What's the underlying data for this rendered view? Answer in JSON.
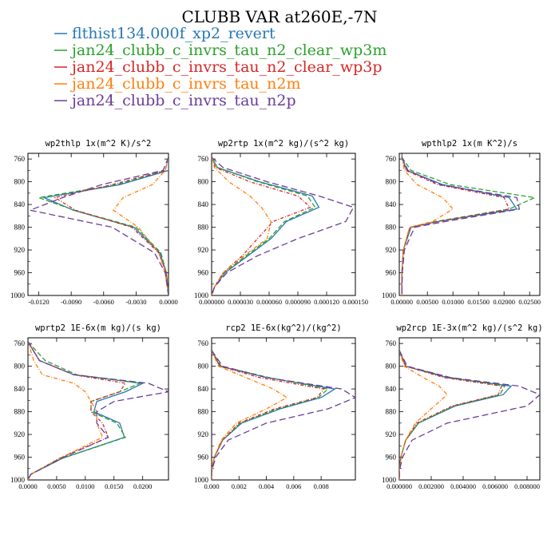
{
  "figure": {
    "title": "CLUBB VAR at260E,-7N"
  },
  "legend": [
    {
      "label": "flthist134.000f_xp2_revert",
      "color": "#2778b5"
    },
    {
      "label": "jan24_clubb_c_invrs_tau_n2_clear_wp3m",
      "color": "#2ca02c"
    },
    {
      "label": "jan24_clubb_c_invrs_tau_n2_clear_wp3p",
      "color": "#d62728"
    },
    {
      "label": "jan24_clubb_c_invrs_tau_n2m",
      "color": "#ff7f0e"
    },
    {
      "label": "jan24_clubb_c_invrs_tau_n2p",
      "color": "#6a3d9a"
    }
  ],
  "chart_data": [
    {
      "type": "line",
      "title": "wp2thlp  1x(m^2 K)/s^2",
      "xlim": [
        -0.013,
        0.0
      ],
      "ylim": [
        1000,
        750
      ],
      "xticks": [
        -0.012,
        -0.009,
        -0.006,
        -0.003,
        0.0
      ],
      "xtick_labels": [
        "-0.0120",
        "-0.0090",
        "-0.0060",
        "-0.0030",
        "0.0000"
      ],
      "yticks": [
        760,
        800,
        840,
        880,
        920,
        960,
        1000
      ],
      "y": [
        757,
        780,
        805,
        828,
        850,
        880,
        925,
        960,
        1000
      ],
      "series": [
        {
          "values": [
            0.0,
            0.0,
            -0.0045,
            -0.0115,
            -0.0088,
            -0.0032,
            -0.0008,
            -0.0002,
            0.0
          ]
        },
        {
          "values": [
            0.0,
            -0.0003,
            -0.0048,
            -0.012,
            -0.0087,
            -0.003,
            -0.0007,
            -0.0002,
            0.0
          ]
        },
        {
          "values": [
            0.0,
            -0.0003,
            -0.0052,
            -0.0105,
            -0.0086,
            -0.0034,
            -0.0009,
            -0.0002,
            0.0
          ]
        },
        {
          "values": [
            0.0,
            -0.0003,
            -0.0015,
            -0.0042,
            -0.0051,
            -0.0028,
            -0.0009,
            -0.0003,
            0.0
          ]
        },
        {
          "values": [
            0.0,
            -0.0005,
            -0.0062,
            -0.0098,
            -0.0128,
            -0.0052,
            -0.0013,
            -0.0003,
            0.0
          ]
        }
      ]
    },
    {
      "type": "line",
      "title": "wp2rtp  1x(m^2 kg)/(s^2 kg)",
      "xlim": [
        0.0,
        0.00015
      ],
      "ylim": [
        1000,
        750
      ],
      "xticks": [
        0.0,
        3e-05,
        6e-05,
        9e-05,
        0.00012,
        0.00015
      ],
      "xtick_labels": [
        "0.000000",
        "0.000030",
        "0.000060",
        "0.000090",
        "0.000120",
        "0.000150"
      ],
      "yticks": [
        760,
        800,
        840,
        880,
        920,
        960,
        1000
      ],
      "y": [
        757,
        775,
        800,
        825,
        845,
        870,
        900,
        930,
        960,
        985,
        1000
      ],
      "series": [
        {
          "values": [
            0.0,
            6e-06,
            5e-05,
            0.000105,
            0.000112,
            7.8e-05,
            6.2e-05,
            3.8e-05,
            1.4e-05,
            3e-06,
            0.0
          ]
        },
        {
          "values": [
            0.0,
            6e-06,
            4.8e-05,
            0.0001,
            0.000108,
            7.6e-05,
            6e-05,
            3.6e-05,
            1.3e-05,
            3e-06,
            0.0
          ]
        },
        {
          "values": [
            0.0,
            4e-06,
            4e-05,
            9e-05,
            0.000103,
            6.4e-05,
            4.8e-05,
            3.2e-05,
            1.2e-05,
            3e-06,
            0.0
          ]
        },
        {
          "values": [
            0.0,
            3e-06,
            1.8e-05,
            4e-05,
            5.2e-05,
            6.2e-05,
            5.8e-05,
            3.4e-05,
            1.2e-05,
            3e-06,
            0.0
          ]
        },
        {
          "values": [
            0.0,
            1.2e-05,
            5.8e-05,
            0.000112,
            0.000148,
            0.00014,
            9e-05,
            4.8e-05,
            1.6e-05,
            3e-06,
            0.0
          ]
        }
      ]
    },
    {
      "type": "line",
      "title": "wpthlp2  1x(m K^2)/s",
      "xlim": [
        -0.0005,
        0.027
      ],
      "ylim": [
        1000,
        750
      ],
      "xticks": [
        0.0,
        0.005,
        0.01,
        0.015,
        0.02,
        0.025
      ],
      "xtick_labels": [
        "0.00000",
        "0.00500",
        "0.01000",
        "0.01500",
        "0.02000",
        "0.02500"
      ],
      "yticks": [
        760,
        800,
        840,
        880,
        920,
        960,
        1000
      ],
      "y": [
        757,
        780,
        805,
        828,
        848,
        870,
        880,
        920,
        960,
        1000
      ],
      "series": [
        {
          "values": [
            0.0,
            0.001,
            0.008,
            0.021,
            0.0225,
            0.007,
            0.0018,
            0.0003,
            0.0,
            0.0
          ]
        },
        {
          "values": [
            0.0,
            0.0018,
            0.0095,
            0.026,
            0.021,
            0.0065,
            0.0016,
            0.0003,
            0.0,
            0.0
          ]
        },
        {
          "values": [
            0.0,
            0.0008,
            0.007,
            0.02,
            0.021,
            0.0072,
            0.0016,
            0.0003,
            0.0,
            0.0
          ]
        },
        {
          "values": [
            0.0,
            0.0005,
            0.003,
            0.008,
            0.01,
            0.006,
            0.0015,
            0.0003,
            0.0,
            0.0
          ]
        },
        {
          "values": [
            0.0,
            0.0012,
            0.0075,
            0.0225,
            0.023,
            0.0085,
            0.0025,
            0.0005,
            0.0001,
            0.0
          ]
        }
      ]
    },
    {
      "type": "line",
      "title": "wprtp2  1E-6x(m kg)/(s kg)",
      "xlim": [
        0.0,
        0.0245
      ],
      "ylim": [
        1000,
        750
      ],
      "xticks": [
        0.0,
        0.005,
        0.01,
        0.015,
        0.02
      ],
      "xtick_labels": [
        "0.0000",
        "0.0050",
        "0.0100",
        "0.0150",
        "0.0200"
      ],
      "yticks": [
        760,
        800,
        840,
        880,
        920,
        960,
        1000
      ],
      "y": [
        757,
        790,
        815,
        830,
        845,
        862,
        880,
        900,
        925,
        962,
        990,
        1000
      ],
      "series": [
        {
          "values": [
            0.0,
            0.002,
            0.008,
            0.02,
            0.017,
            0.012,
            0.0115,
            0.016,
            0.0168,
            0.006,
            0.0005,
            0.0
          ]
        },
        {
          "values": [
            0.0,
            0.003,
            0.0085,
            0.0195,
            0.016,
            0.011,
            0.011,
            0.0155,
            0.017,
            0.006,
            0.0005,
            0.0
          ]
        },
        {
          "values": [
            0.0,
            0.002,
            0.008,
            0.017,
            0.016,
            0.011,
            0.011,
            0.013,
            0.014,
            0.0055,
            0.0005,
            0.0
          ]
        },
        {
          "values": [
            0.0,
            0.001,
            0.0025,
            0.008,
            0.01,
            0.011,
            0.012,
            0.012,
            0.013,
            0.0055,
            0.0005,
            0.0
          ]
        },
        {
          "values": [
            0.0,
            0.002,
            0.008,
            0.021,
            0.0245,
            0.015,
            0.012,
            0.012,
            0.014,
            0.0058,
            0.0005,
            0.0
          ]
        }
      ]
    },
    {
      "type": "line",
      "title": "rcp2  1E-6x(kg^2)/(kg^2)",
      "xlim": [
        0.0,
        0.0105
      ],
      "ylim": [
        1000,
        750
      ],
      "xticks": [
        0.0,
        0.002,
        0.004,
        0.006,
        0.008
      ],
      "xtick_labels": [
        "0.000",
        "0.002",
        "0.004",
        "0.006",
        "0.008"
      ],
      "yticks": [
        760,
        800,
        840,
        880,
        920,
        960,
        1000
      ],
      "y": [
        772,
        800,
        820,
        840,
        855,
        875,
        900,
        930,
        960,
        985,
        1000
      ],
      "series": [
        {
          "values": [
            0.0,
            0.0006,
            0.004,
            0.009,
            0.008,
            0.005,
            0.0022,
            0.0008,
            0.0002,
            0.0,
            0.0
          ]
        },
        {
          "values": [
            0.0,
            0.0007,
            0.0042,
            0.0085,
            0.0078,
            0.0048,
            0.0021,
            0.0008,
            0.0002,
            0.0,
            0.0
          ]
        },
        {
          "values": [
            0.0,
            0.0006,
            0.0035,
            0.0082,
            0.0077,
            0.0046,
            0.002,
            0.0008,
            0.0002,
            0.0,
            0.0
          ]
        },
        {
          "values": [
            0.0,
            0.0005,
            0.0025,
            0.0045,
            0.0055,
            0.004,
            0.0018,
            0.0007,
            0.0002,
            0.0,
            0.0
          ]
        },
        {
          "values": [
            0.0,
            0.0008,
            0.004,
            0.0095,
            0.0105,
            0.0085,
            0.004,
            0.0012,
            0.0003,
            0.0,
            0.0
          ]
        }
      ]
    },
    {
      "type": "line",
      "title": "wp2rcp  1E-3x(m^2 kg)/(s^2 kg)",
      "xlim": [
        0.0,
        0.0088
      ],
      "ylim": [
        1000,
        750
      ],
      "xticks": [
        0.0,
        0.002,
        0.004,
        0.006,
        0.008
      ],
      "xtick_labels": [
        "0.000000",
        "0.002000",
        "0.004000",
        "0.006000",
        "0.008000"
      ],
      "yticks": [
        760,
        800,
        840,
        880,
        920,
        960,
        1000
      ],
      "y": [
        772,
        800,
        820,
        835,
        850,
        870,
        900,
        930,
        960,
        985,
        1000
      ],
      "series": [
        {
          "values": [
            0.0,
            0.0004,
            0.003,
            0.007,
            0.0065,
            0.0035,
            0.0012,
            0.0004,
            0.0001,
            0.0,
            0.0
          ]
        },
        {
          "values": [
            0.0,
            0.0004,
            0.0032,
            0.0066,
            0.0063,
            0.0034,
            0.0012,
            0.0004,
            0.0001,
            0.0,
            0.0
          ]
        },
        {
          "values": [
            0.0,
            0.0004,
            0.0028,
            0.0064,
            0.0062,
            0.0033,
            0.0011,
            0.0004,
            0.0001,
            0.0,
            0.0
          ]
        },
        {
          "values": [
            0.0,
            0.0003,
            0.0015,
            0.0025,
            0.003,
            0.0022,
            0.001,
            0.0004,
            0.0001,
            0.0,
            0.0
          ]
        },
        {
          "values": [
            0.0,
            0.0005,
            0.0032,
            0.0075,
            0.0088,
            0.008,
            0.003,
            0.0008,
            0.0002,
            0.0,
            0.0
          ]
        }
      ]
    }
  ]
}
